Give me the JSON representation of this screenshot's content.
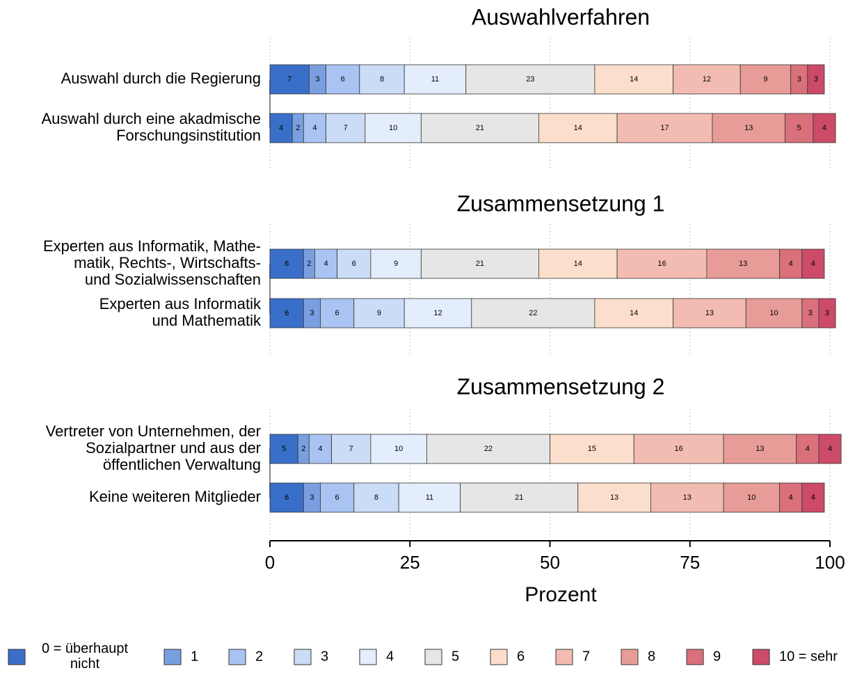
{
  "chart_data": [
    {
      "type": "bar",
      "orientation": "horizontal",
      "stacked": true,
      "title": "Auswahlverfahren",
      "categories": [
        "Auswahl durch die Regierung",
        "Auswahl durch eine akadmische\nForschungsinstitution"
      ],
      "xlim": [
        0,
        100
      ],
      "xticks": [
        0,
        25,
        50,
        75,
        100
      ],
      "grid": true,
      "series": [
        {
          "name": "0 = überhaupt\nnicht",
          "color": "#3a6fc9",
          "values": [
            7,
            4
          ]
        },
        {
          "name": "1",
          "color": "#7a9fe0",
          "values": [
            3,
            2
          ]
        },
        {
          "name": "2",
          "color": "#a9c4f2",
          "values": [
            6,
            4
          ]
        },
        {
          "name": "3",
          "color": "#cbdcf7",
          "values": [
            8,
            7
          ]
        },
        {
          "name": "4",
          "color": "#e4edfb",
          "values": [
            11,
            10
          ]
        },
        {
          "name": "5",
          "color": "#e6e6e6",
          "values": [
            23,
            21
          ]
        },
        {
          "name": "6",
          "color": "#fbdfcc",
          "values": [
            14,
            14
          ]
        },
        {
          "name": "7",
          "color": "#f3bcb2",
          "values": [
            12,
            17
          ]
        },
        {
          "name": "8",
          "color": "#e89c98",
          "values": [
            9,
            13
          ]
        },
        {
          "name": "9",
          "color": "#d9707a",
          "values": [
            3,
            5
          ]
        },
        {
          "name": "10 = sehr",
          "color": "#cc4b68",
          "values": [
            3,
            4
          ]
        }
      ]
    },
    {
      "type": "bar",
      "orientation": "horizontal",
      "stacked": true,
      "title": "Zusammensetzung 1",
      "categories": [
        "Experten aus Informatik, Mathe-\nmatik, Rechts-, Wirtschafts-\nund Sozialwissenschaften",
        "Experten aus Informatik\nund Mathematik"
      ],
      "xlim": [
        0,
        100
      ],
      "xticks": [
        0,
        25,
        50,
        75,
        100
      ],
      "grid": true,
      "series": [
        {
          "name": "0 = überhaupt\nnicht",
          "color": "#3a6fc9",
          "values": [
            6,
            6
          ]
        },
        {
          "name": "1",
          "color": "#7a9fe0",
          "values": [
            2,
            3
          ]
        },
        {
          "name": "2",
          "color": "#a9c4f2",
          "values": [
            4,
            6
          ]
        },
        {
          "name": "3",
          "color": "#cbdcf7",
          "values": [
            6,
            9
          ]
        },
        {
          "name": "4",
          "color": "#e4edfb",
          "values": [
            9,
            12
          ]
        },
        {
          "name": "5",
          "color": "#e6e6e6",
          "values": [
            21,
            22
          ]
        },
        {
          "name": "6",
          "color": "#fbdfcc",
          "values": [
            14,
            14
          ]
        },
        {
          "name": "7",
          "color": "#f3bcb2",
          "values": [
            16,
            13
          ]
        },
        {
          "name": "8",
          "color": "#e89c98",
          "values": [
            13,
            10
          ]
        },
        {
          "name": "9",
          "color": "#d9707a",
          "values": [
            4,
            3
          ]
        },
        {
          "name": "10 = sehr",
          "color": "#cc4b68",
          "values": [
            4,
            3
          ]
        }
      ]
    },
    {
      "type": "bar",
      "orientation": "horizontal",
      "stacked": true,
      "title": "Zusammensetzung 2",
      "categories": [
        "Vertreter von Unternehmen, der\nSozialpartner und aus der\nöffentlichen Verwaltung",
        "Keine weiteren Mitglieder"
      ],
      "xlim": [
        0,
        100
      ],
      "xticks": [
        0,
        25,
        50,
        75,
        100
      ],
      "grid": true,
      "xlabel": "Prozent",
      "series": [
        {
          "name": "0 = überhaupt\nnicht",
          "color": "#3a6fc9",
          "values": [
            5,
            6
          ]
        },
        {
          "name": "1",
          "color": "#7a9fe0",
          "values": [
            2,
            3
          ]
        },
        {
          "name": "2",
          "color": "#a9c4f2",
          "values": [
            4,
            6
          ]
        },
        {
          "name": "3",
          "color": "#cbdcf7",
          "values": [
            7,
            8
          ]
        },
        {
          "name": "4",
          "color": "#e4edfb",
          "values": [
            10,
            11
          ]
        },
        {
          "name": "5",
          "color": "#e6e6e6",
          "values": [
            22,
            21
          ]
        },
        {
          "name": "6",
          "color": "#fbdfcc",
          "values": [
            15,
            13
          ]
        },
        {
          "name": "7",
          "color": "#f3bcb2",
          "values": [
            16,
            13
          ]
        },
        {
          "name": "8",
          "color": "#e89c98",
          "values": [
            13,
            10
          ]
        },
        {
          "name": "9",
          "color": "#d9707a",
          "values": [
            4,
            4
          ]
        },
        {
          "name": "10 = sehr",
          "color": "#cc4b68",
          "values": [
            4,
            4
          ]
        }
      ]
    }
  ]
}
